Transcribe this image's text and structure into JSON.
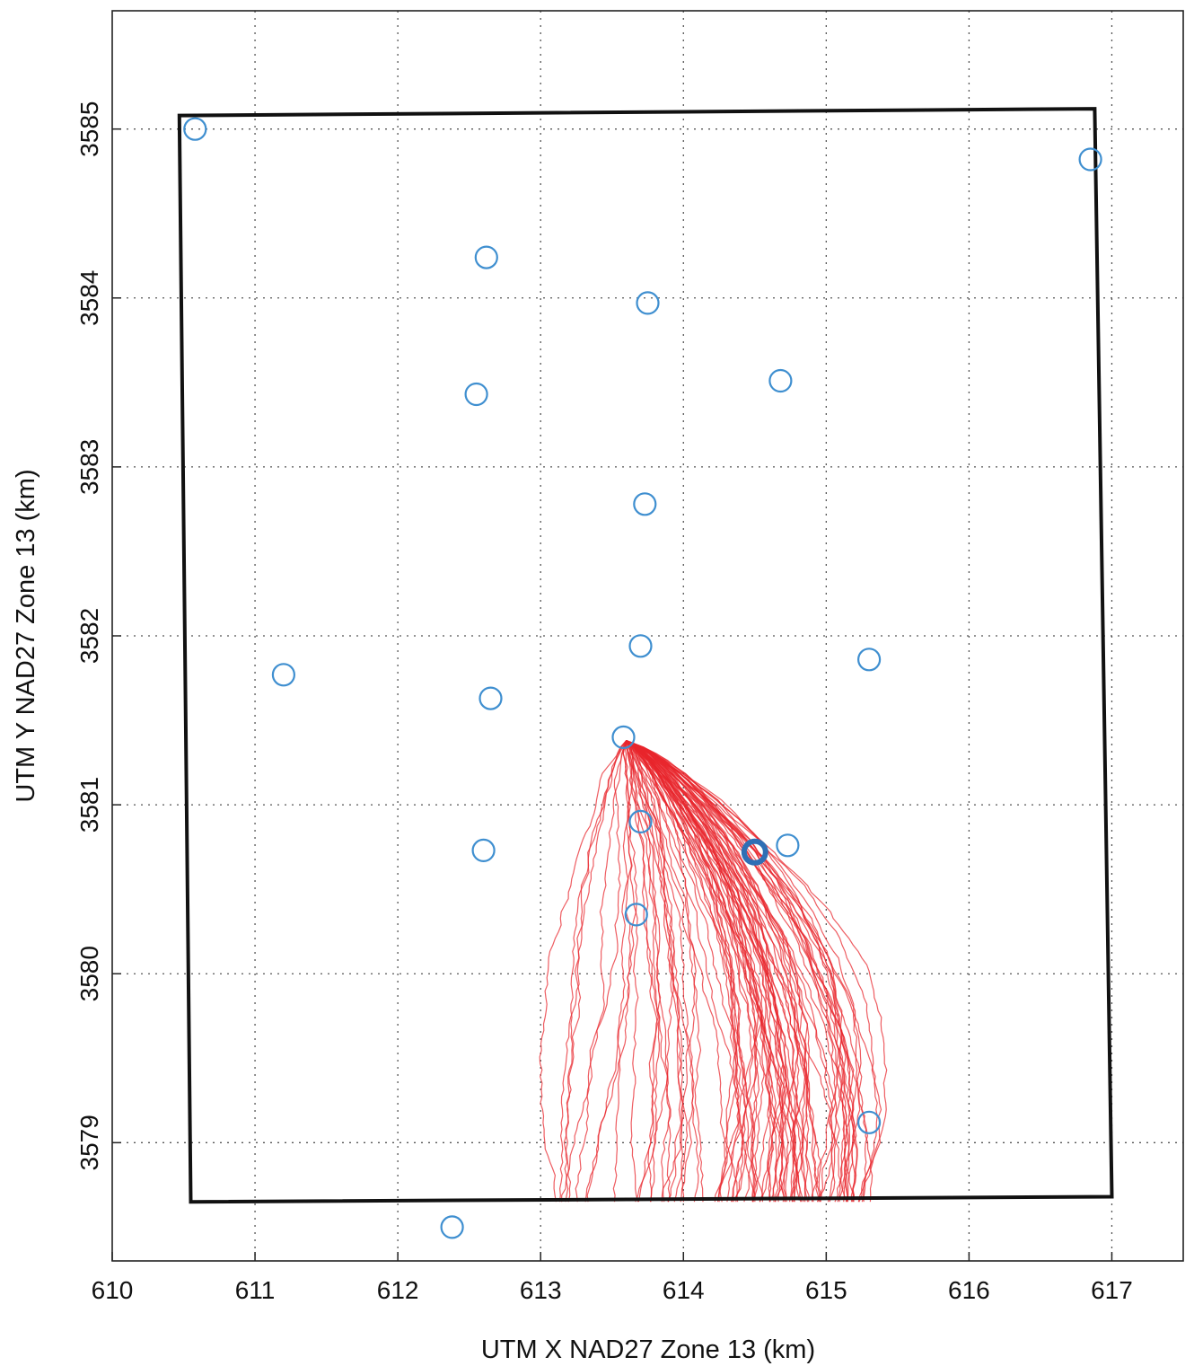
{
  "chart_data": {
    "type": "scatter",
    "title": "",
    "xlabel": "UTM X NAD27 Zone 13 (km)",
    "ylabel": "UTM Y NAD27 Zone 13 (km)",
    "xlim": [
      610,
      617.5
    ],
    "ylim": [
      3578.3,
      3585.7
    ],
    "xticks": [
      610,
      611,
      612,
      613,
      614,
      615,
      616,
      617
    ],
    "yticks": [
      3579,
      3580,
      3581,
      3582,
      3583,
      3584,
      3585
    ],
    "grid": true,
    "colors": {
      "points": "#3f8fd0",
      "paths": "#e8262c",
      "boundary": "#111111",
      "grid": "#555555"
    },
    "boundary": [
      {
        "x": 610.47,
        "y": 3585.08
      },
      {
        "x": 616.88,
        "y": 3585.12
      },
      {
        "x": 617.0,
        "y": 3578.68
      },
      {
        "x": 610.55,
        "y": 3578.65
      }
    ],
    "points": [
      {
        "x": 610.58,
        "y": 3585.0
      },
      {
        "x": 616.85,
        "y": 3584.82
      },
      {
        "x": 612.62,
        "y": 3584.24
      },
      {
        "x": 613.75,
        "y": 3583.97
      },
      {
        "x": 612.55,
        "y": 3583.43
      },
      {
        "x": 614.68,
        "y": 3583.51
      },
      {
        "x": 613.73,
        "y": 3582.78
      },
      {
        "x": 613.7,
        "y": 3581.94
      },
      {
        "x": 615.3,
        "y": 3581.86
      },
      {
        "x": 611.2,
        "y": 3581.77
      },
      {
        "x": 612.65,
        "y": 3581.63
      },
      {
        "x": 613.58,
        "y": 3581.4
      },
      {
        "x": 613.7,
        "y": 3580.9
      },
      {
        "x": 612.6,
        "y": 3580.73
      },
      {
        "x": 614.73,
        "y": 3580.76
      },
      {
        "x": 613.67,
        "y": 3580.35
      },
      {
        "x": 615.3,
        "y": 3579.12
      },
      {
        "x": 612.38,
        "y": 3578.5
      }
    ],
    "highlight_point": {
      "x": 614.5,
      "y": 3580.72
    },
    "path_source": {
      "x": 613.6,
      "y": 3581.38
    },
    "path_count": 90
  }
}
